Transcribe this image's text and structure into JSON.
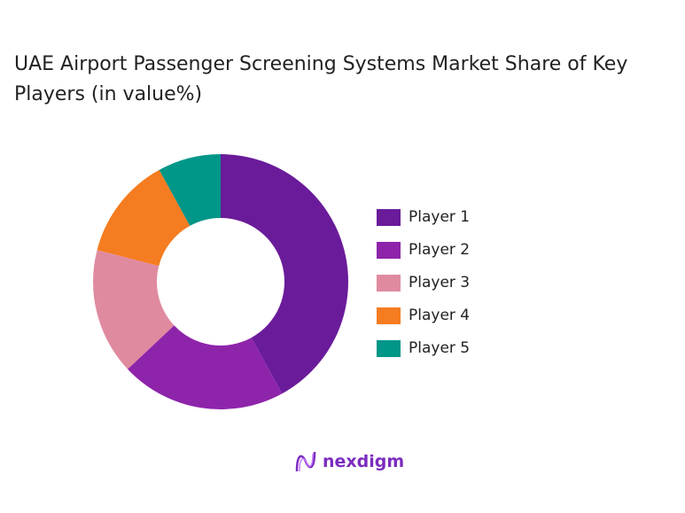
{
  "chart_data": {
    "type": "pie",
    "subtype": "donut",
    "title": "UAE Airport Passenger Screening Systems Market Share of Key Players (in value%)",
    "categories": [
      "Player 1",
      "Player 2",
      "Player 3",
      "Player 4",
      "Player 5"
    ],
    "values": [
      42,
      21,
      16,
      13,
      8
    ],
    "colors": [
      "#6a1b9a",
      "#8e24aa",
      "#e08aa0",
      "#f57c20",
      "#009688"
    ],
    "legend_position": "right"
  },
  "logo": {
    "text": "nexdigm"
  }
}
